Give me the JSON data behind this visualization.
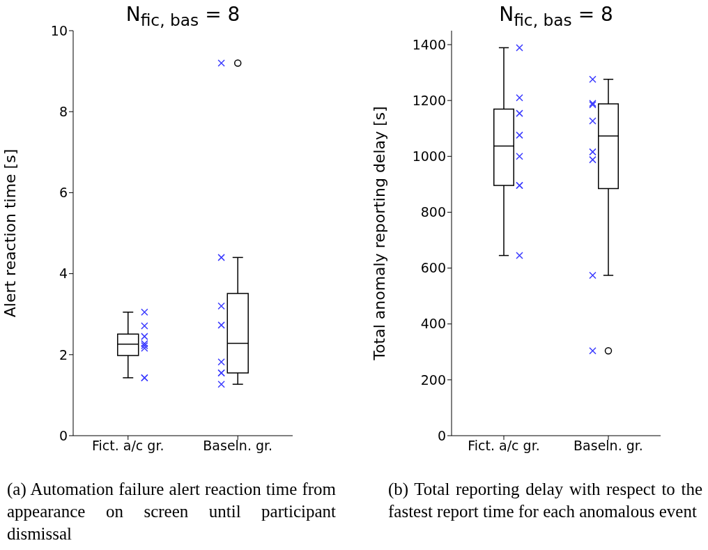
{
  "chart_data": [
    {
      "type": "box",
      "title": "N$_{fic, bas}$ = 8",
      "ylabel": "Alert reaction time [s]",
      "categories": [
        "Fict. a/c gr.",
        "Baseln. gr."
      ],
      "boxes": [
        {
          "low": 1.43,
          "q1": 1.98,
          "median": 2.26,
          "q3": 2.51,
          "high": 3.05
        },
        {
          "low": 1.27,
          "q1": 1.55,
          "median": 2.28,
          "q3": 3.51,
          "high": 4.4,
          "outliers": [
            9.2
          ]
        }
      ],
      "series": [
        {
          "type": "scatter",
          "color": "#3a3aff",
          "marker": "cross",
          "x": [
            "Fict. a/c gr.",
            "Fict. a/c gr.",
            "Fict. a/c gr.",
            "Fict. a/c gr.",
            "Fict. a/c gr.",
            "Fict. a/c gr.",
            "Fict. a/c gr.",
            "Fict. a/c gr.",
            "Baseln. gr.",
            "Baseln. gr.",
            "Baseln. gr.",
            "Baseln. gr.",
            "Baseln. gr.",
            "Baseln. gr.",
            "Baseln. gr.",
            "Baseln. gr."
          ],
          "values": [
            3.05,
            2.71,
            2.45,
            2.27,
            2.22,
            2.16,
            1.43,
            1.43,
            9.2,
            4.4,
            3.2,
            2.73,
            1.82,
            1.55,
            1.55,
            1.27
          ]
        }
      ],
      "ylim": [
        0,
        10
      ],
      "yticks": [
        0,
        2,
        4,
        6,
        8,
        10
      ],
      "grid": false,
      "annotations": [
        "(a) Automation failure alert reaction time from appearance on screen until participant dismissal"
      ]
    },
    {
      "type": "box",
      "title": "N$_{fic, bas}$ = 8",
      "ylabel": "Total anomaly reporting delay [s]",
      "categories": [
        "Fict. a/c gr.",
        "Baseln. gr."
      ],
      "boxes": [
        {
          "low": 645,
          "q1": 896,
          "median": 1037,
          "q3": 1169,
          "high": 1389
        },
        {
          "low": 574,
          "q1": 885,
          "median": 1073,
          "q3": 1188,
          "high": 1276,
          "outliers": [
            304
          ]
        }
      ],
      "series": [
        {
          "type": "scatter",
          "color": "#3a3aff",
          "marker": "cross",
          "x": [
            "Fict. a/c gr.",
            "Fict. a/c gr.",
            "Fict. a/c gr.",
            "Fict. a/c gr.",
            "Fict. a/c gr.",
            "Fict. a/c gr.",
            "Fict. a/c gr.",
            "Fict. a/c gr.",
            "Baseln. gr.",
            "Baseln. gr.",
            "Baseln. gr.",
            "Baseln. gr.",
            "Baseln. gr.",
            "Baseln. gr.",
            "Baseln. gr.",
            "Baseln. gr."
          ],
          "values": [
            1389,
            1210,
            1154,
            1076,
            1000,
            896,
            896,
            645,
            1276,
            1190,
            1185,
            1127,
            1016,
            988,
            574,
            304
          ]
        }
      ],
      "ylim": [
        0,
        1450
      ],
      "yticks": [
        0,
        200,
        400,
        600,
        800,
        1000,
        1200,
        1400
      ],
      "grid": false,
      "annotations": [
        "(b) Total reporting delay with respect to the fastest report time for each anomalous event"
      ]
    }
  ]
}
